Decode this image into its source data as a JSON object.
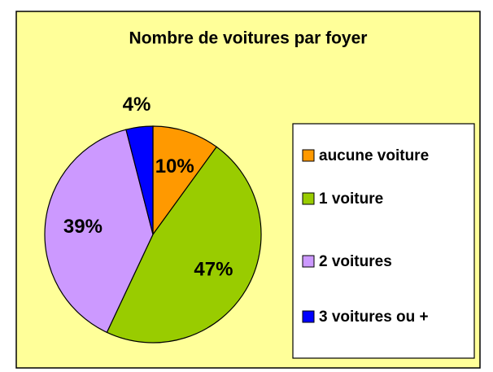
{
  "chart_data": {
    "type": "pie",
    "title": "Nombre de voitures par foyer",
    "categories": [
      "aucune voiture",
      "1 voiture",
      "2 voitures",
      "3 voitures ou +"
    ],
    "values": [
      10,
      47,
      39,
      4
    ],
    "value_labels": [
      "10%",
      "47%",
      "39%",
      "4%"
    ],
    "colors": [
      "#FF9900",
      "#99CC00",
      "#CC99FF",
      "#0000FF"
    ],
    "legend": "right"
  }
}
